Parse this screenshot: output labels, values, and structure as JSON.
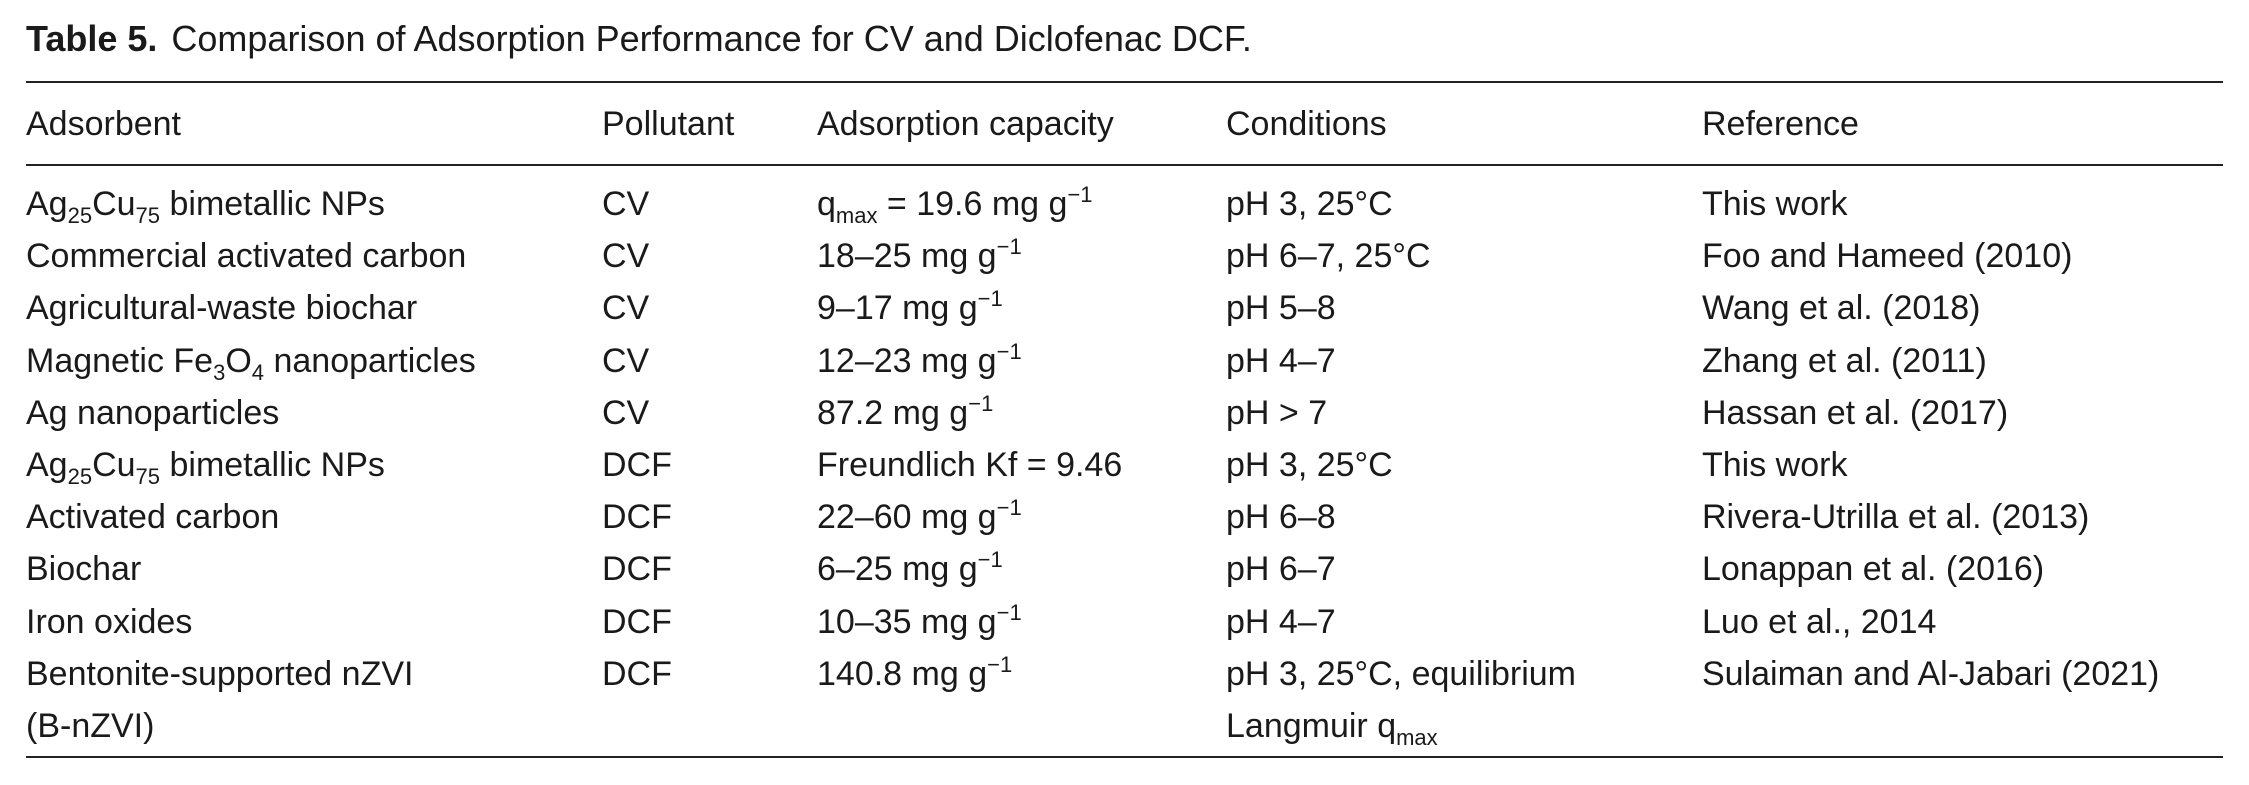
{
  "title": {
    "label": "Table 5.",
    "text": "Comparison of Adsorption Performance for CV and Diclofenac DCF."
  },
  "table": {
    "header": [
      "Adsorbent",
      "Pollutant",
      "Adsorption capacity",
      "Conditions",
      "Reference"
    ],
    "rows": [
      [
        [
          [
            "Ag",
            {
              "sub": "25"
            },
            "Cu",
            {
              "sub": "75"
            },
            " bimetallic NPs"
          ]
        ],
        [
          [
            "CV"
          ]
        ],
        [
          [
            "q",
            {
              "sub": "max"
            },
            " = 19.6 mg g",
            {
              "sup": "−1"
            }
          ]
        ],
        [
          [
            "pH 3, 25°C"
          ]
        ],
        [
          [
            "This work"
          ]
        ]
      ],
      [
        [
          [
            "Commercial activated carbon"
          ]
        ],
        [
          [
            "CV"
          ]
        ],
        [
          [
            "18–25 mg g",
            {
              "sup": "−1"
            }
          ]
        ],
        [
          [
            "pH 6–7, 25°C"
          ]
        ],
        [
          [
            "Foo and Hameed (2010)"
          ]
        ]
      ],
      [
        [
          [
            "Agricultural-waste biochar"
          ]
        ],
        [
          [
            "CV"
          ]
        ],
        [
          [
            "9–17 mg g",
            {
              "sup": "−1"
            }
          ]
        ],
        [
          [
            "pH 5–8"
          ]
        ],
        [
          [
            "Wang et al. (2018)"
          ]
        ]
      ],
      [
        [
          [
            "Magnetic Fe",
            {
              "sub": "3"
            },
            "O",
            {
              "sub": "4"
            },
            " nanoparticles"
          ]
        ],
        [
          [
            "CV"
          ]
        ],
        [
          [
            "12–23 mg g",
            {
              "sup": "−1"
            }
          ]
        ],
        [
          [
            "pH 4–7"
          ]
        ],
        [
          [
            "Zhang et al. (2011)"
          ]
        ]
      ],
      [
        [
          [
            "Ag nanoparticles"
          ]
        ],
        [
          [
            "CV"
          ]
        ],
        [
          [
            "87.2 mg g",
            {
              "sup": "−1"
            }
          ]
        ],
        [
          [
            "pH > 7"
          ]
        ],
        [
          [
            "Hassan et al. (2017)"
          ]
        ]
      ],
      [
        [
          [
            "Ag",
            {
              "sub": "25"
            },
            "Cu",
            {
              "sub": "75"
            },
            " bimetallic NPs"
          ]
        ],
        [
          [
            "DCF"
          ]
        ],
        [
          [
            "Freundlich Kf = 9.46"
          ]
        ],
        [
          [
            "pH 3, 25°C"
          ]
        ],
        [
          [
            "This work"
          ]
        ]
      ],
      [
        [
          [
            "Activated carbon"
          ]
        ],
        [
          [
            "DCF"
          ]
        ],
        [
          [
            "22–60 mg g",
            {
              "sup": "−1"
            }
          ]
        ],
        [
          [
            "pH 6–8"
          ]
        ],
        [
          [
            "Rivera-Utrilla et al. (2013)"
          ]
        ]
      ],
      [
        [
          [
            "Biochar"
          ]
        ],
        [
          [
            "DCF"
          ]
        ],
        [
          [
            "6–25 mg g",
            {
              "sup": "−1"
            }
          ]
        ],
        [
          [
            "pH 6–7"
          ]
        ],
        [
          [
            "Lonappan et al. (2016)"
          ]
        ]
      ],
      [
        [
          [
            "Iron oxides"
          ]
        ],
        [
          [
            "DCF"
          ]
        ],
        [
          [
            "10–35 mg g",
            {
              "sup": "−1"
            }
          ]
        ],
        [
          [
            "pH 4–7"
          ]
        ],
        [
          [
            "Luo et al., 2014"
          ]
        ]
      ],
      [
        [
          [
            "Bentonite-supported nZVI"
          ],
          [
            "(B-nZVI)"
          ]
        ],
        [
          [
            "DCF"
          ]
        ],
        [
          [
            "140.8 mg g",
            {
              "sup": "−1"
            }
          ]
        ],
        [
          [
            "pH 3, 25°C, equilibrium"
          ],
          [
            "Langmuir q",
            {
              "sub": "max"
            }
          ]
        ],
        [
          [
            "Sulaiman and Al-Jabari (2021)"
          ]
        ]
      ]
    ]
  }
}
